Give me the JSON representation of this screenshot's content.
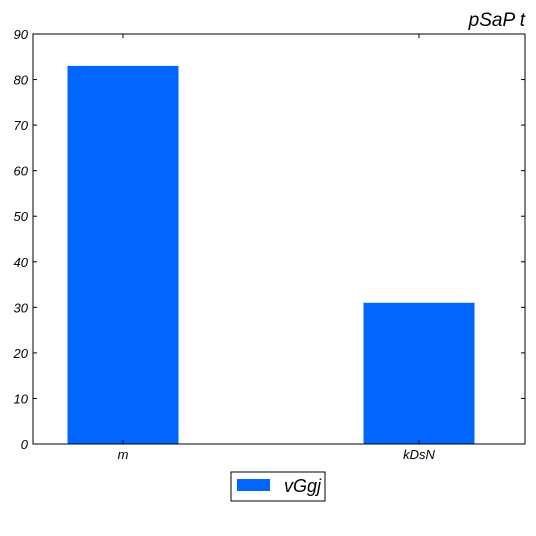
{
  "chart_data": {
    "type": "bar",
    "title": "pSaP t",
    "xlabel": "",
    "ylabel": "",
    "categories": [
      "m",
      "kDsN"
    ],
    "series": [
      {
        "name": "vGgj",
        "values": [
          83,
          31
        ],
        "color": "#0066ff"
      }
    ],
    "ylim": [
      0,
      90
    ],
    "yticks": [
      0,
      10,
      20,
      30,
      40,
      50,
      60,
      70,
      80,
      90
    ],
    "grid": false,
    "legend_position": "bottom-center"
  }
}
